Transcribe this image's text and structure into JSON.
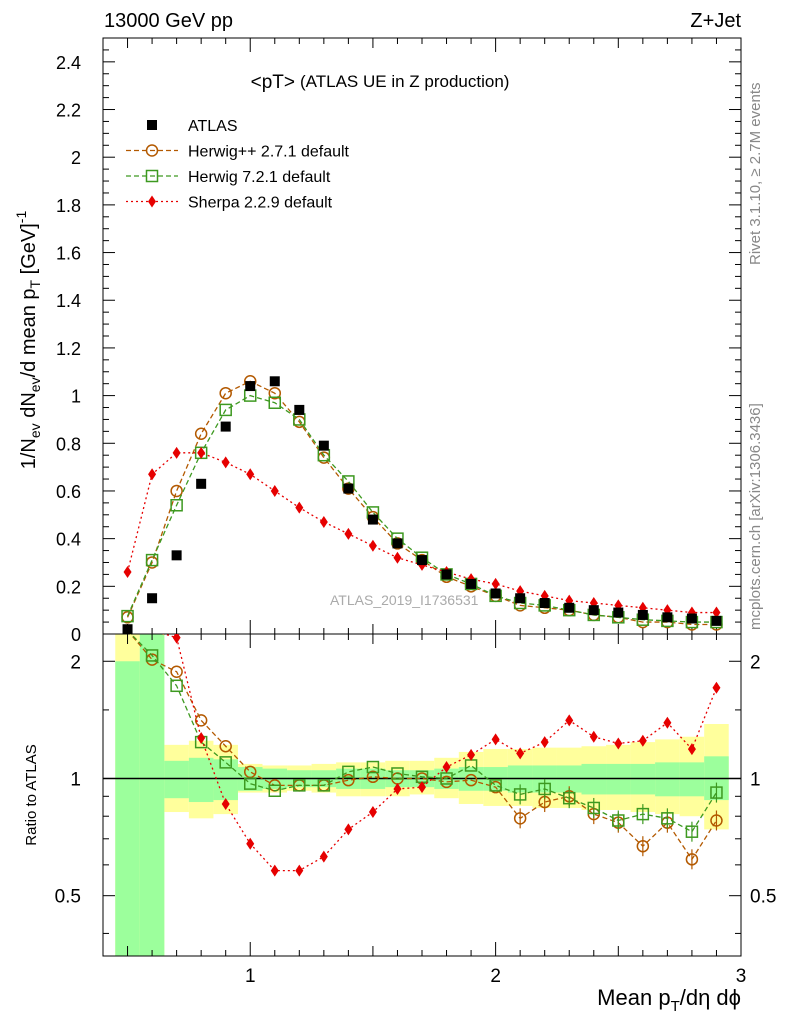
{
  "header": {
    "left_label": "13000 GeV pp",
    "right_label": "Z+Jet"
  },
  "side": {
    "rivet_label": "Rivet 3.1.10, ≥ 2.7M events",
    "mcplots_label": "mcplots.cern.ch [arXiv:1306.3436]"
  },
  "chart_data": [
    {
      "type": "scatter",
      "title": "<pT>",
      "subtitle": "(ATLAS UE in Z production)",
      "ylabel": "1/N_ev dN_ev/d mean p_T [GeV]^-1",
      "ylim": [
        0,
        2.5
      ],
      "xlim": [
        0.4,
        3.0
      ],
      "yticks": [
        0,
        0.2,
        0.4,
        0.6,
        0.8,
        1,
        1.2,
        1.4,
        1.6,
        1.8,
        2,
        2.2,
        2.4
      ],
      "ytick_labels": [
        "0",
        "0.2",
        "0.4",
        "0.6",
        "0.8",
        "1",
        "1.2",
        "1.4",
        "1.6",
        "1.8",
        "2",
        "2.2",
        "2.4"
      ],
      "watermark": "ATLAS_2019_I1736531",
      "legend_position": "top-left",
      "x": [
        0.5,
        0.6,
        0.7,
        0.8,
        0.9,
        1.0,
        1.1,
        1.2,
        1.3,
        1.4,
        1.5,
        1.6,
        1.7,
        1.8,
        1.9,
        2.0,
        2.1,
        2.2,
        2.3,
        2.4,
        2.5,
        2.6,
        2.7,
        2.8,
        2.9
      ],
      "series": [
        {
          "name": "ATLAS",
          "color": "#000000",
          "marker": "square-filled",
          "values": [
            0.02,
            0.15,
            0.33,
            0.63,
            0.87,
            1.04,
            1.06,
            0.94,
            0.79,
            0.61,
            0.48,
            0.38,
            0.31,
            0.25,
            0.21,
            0.17,
            0.15,
            0.13,
            0.11,
            0.1,
            0.09,
            0.08,
            0.07,
            0.065,
            0.055
          ]
        },
        {
          "name": "Herwig++ 2.7.1 default",
          "color": "#b35900",
          "marker": "circle-open",
          "line": "dashed",
          "values": [
            0.07,
            0.3,
            0.6,
            0.84,
            1.01,
            1.06,
            1.01,
            0.89,
            0.74,
            0.61,
            0.49,
            0.38,
            0.31,
            0.24,
            0.2,
            0.16,
            0.12,
            0.11,
            0.1,
            0.08,
            0.07,
            0.05,
            0.05,
            0.04,
            0.04
          ]
        },
        {
          "name": "Herwig 7.2.1 default",
          "color": "#3d9920",
          "marker": "square-open",
          "line": "dashed",
          "values": [
            0.075,
            0.31,
            0.54,
            0.76,
            0.94,
            1.0,
            0.97,
            0.9,
            0.75,
            0.64,
            0.51,
            0.4,
            0.32,
            0.25,
            0.21,
            0.16,
            0.13,
            0.12,
            0.1,
            0.08,
            0.07,
            0.06,
            0.055,
            0.05,
            0.05
          ]
        },
        {
          "name": "Sherpa 2.2.9 default",
          "color": "#e60000",
          "marker": "diamond-filled",
          "line": "dotted",
          "values": [
            0.26,
            0.67,
            0.76,
            0.76,
            0.72,
            0.67,
            0.6,
            0.53,
            0.47,
            0.42,
            0.37,
            0.32,
            0.29,
            0.26,
            0.23,
            0.21,
            0.18,
            0.16,
            0.14,
            0.13,
            0.12,
            0.11,
            0.1,
            0.09,
            0.09
          ]
        }
      ]
    },
    {
      "type": "scatter",
      "ylabel": "Ratio to ATLAS",
      "xlabel": "Mean p_T/dη dϕ",
      "xlim": [
        0.4,
        3.0
      ],
      "ylim": [
        0.35,
        2.35
      ],
      "xticks": [
        1,
        2,
        3
      ],
      "xtick_labels": [
        "1",
        "2",
        "3"
      ],
      "yticks": [
        0.5,
        1,
        2
      ],
      "ytick_labels": [
        "0.5",
        "1",
        "2"
      ],
      "reference_line": 1,
      "x": [
        0.5,
        0.6,
        0.7,
        0.8,
        0.9,
        1.0,
        1.1,
        1.2,
        1.3,
        1.4,
        1.5,
        1.6,
        1.7,
        1.8,
        1.9,
        2.0,
        2.1,
        2.2,
        2.3,
        2.4,
        2.5,
        2.6,
        2.7,
        2.8,
        2.9
      ],
      "uncertainty_bands": {
        "bin_edges": [
          0.45,
          0.55,
          0.65,
          0.75,
          0.85,
          0.95,
          1.05,
          1.15,
          1.25,
          1.35,
          1.45,
          1.55,
          1.65,
          1.75,
          1.85,
          1.95,
          2.05,
          2.15,
          2.25,
          2.35,
          2.45,
          2.55,
          2.65,
          2.75,
          2.85,
          2.95
        ],
        "stat_color": "#9cff9c",
        "total_color": "#ffff9c",
        "stat_low": [
          0.35,
          0.35,
          0.89,
          0.87,
          0.88,
          0.93,
          0.94,
          0.95,
          0.95,
          0.94,
          0.94,
          0.95,
          0.95,
          0.94,
          0.93,
          0.93,
          0.92,
          0.92,
          0.92,
          0.91,
          0.91,
          0.91,
          0.9,
          0.9,
          0.88
        ],
        "stat_high": [
          2.0,
          2.35,
          1.11,
          1.13,
          1.12,
          1.07,
          1.06,
          1.05,
          1.05,
          1.06,
          1.06,
          1.05,
          1.05,
          1.06,
          1.07,
          1.07,
          1.08,
          1.08,
          1.08,
          1.09,
          1.09,
          1.09,
          1.1,
          1.1,
          1.14
        ],
        "total_low": [
          0.35,
          0.35,
          0.82,
          0.79,
          0.81,
          0.92,
          0.92,
          0.93,
          0.92,
          0.9,
          0.9,
          0.9,
          0.91,
          0.89,
          0.86,
          0.85,
          0.85,
          0.84,
          0.84,
          0.83,
          0.83,
          0.82,
          0.81,
          0.8,
          0.74
        ],
        "total_high": [
          2.35,
          2.35,
          1.22,
          1.25,
          1.22,
          1.09,
          1.08,
          1.08,
          1.09,
          1.1,
          1.1,
          1.11,
          1.11,
          1.13,
          1.17,
          1.19,
          1.19,
          1.2,
          1.2,
          1.21,
          1.22,
          1.24,
          1.26,
          1.28,
          1.38
        ]
      },
      "series": [
        {
          "name": "Herwig++ 2.7.1 default",
          "color": "#b35900",
          "marker": "circle-open",
          "line": "dashed",
          "values": [
            2.4,
            2.02,
            1.88,
            1.41,
            1.21,
            1.04,
            0.96,
            0.96,
            0.96,
            0.99,
            1.01,
            1.0,
            1.0,
            0.98,
            0.99,
            0.95,
            0.79,
            0.87,
            0.9,
            0.81,
            0.77,
            0.67,
            0.77,
            0.62,
            0.78
          ]
        },
        {
          "name": "Herwig 7.2.1 default",
          "color": "#3d9920",
          "marker": "square-open",
          "line": "dashed",
          "values": [
            2.4,
            2.07,
            1.73,
            1.24,
            1.1,
            0.97,
            0.93,
            0.96,
            0.96,
            1.04,
            1.07,
            1.03,
            1.01,
            1.0,
            1.08,
            0.96,
            0.91,
            0.94,
            0.89,
            0.84,
            0.78,
            0.81,
            0.79,
            0.73,
            0.92
          ]
        },
        {
          "name": "Sherpa 2.2.9 default",
          "color": "#e60000",
          "marker": "diamond-filled",
          "line": "dotted",
          "values": [
            2.4,
            2.4,
            2.3,
            1.27,
            0.86,
            0.68,
            0.58,
            0.58,
            0.63,
            0.74,
            0.82,
            0.94,
            0.95,
            1.07,
            1.15,
            1.26,
            1.16,
            1.24,
            1.41,
            1.28,
            1.23,
            1.25,
            1.39,
            1.19,
            1.71
          ]
        }
      ]
    }
  ]
}
